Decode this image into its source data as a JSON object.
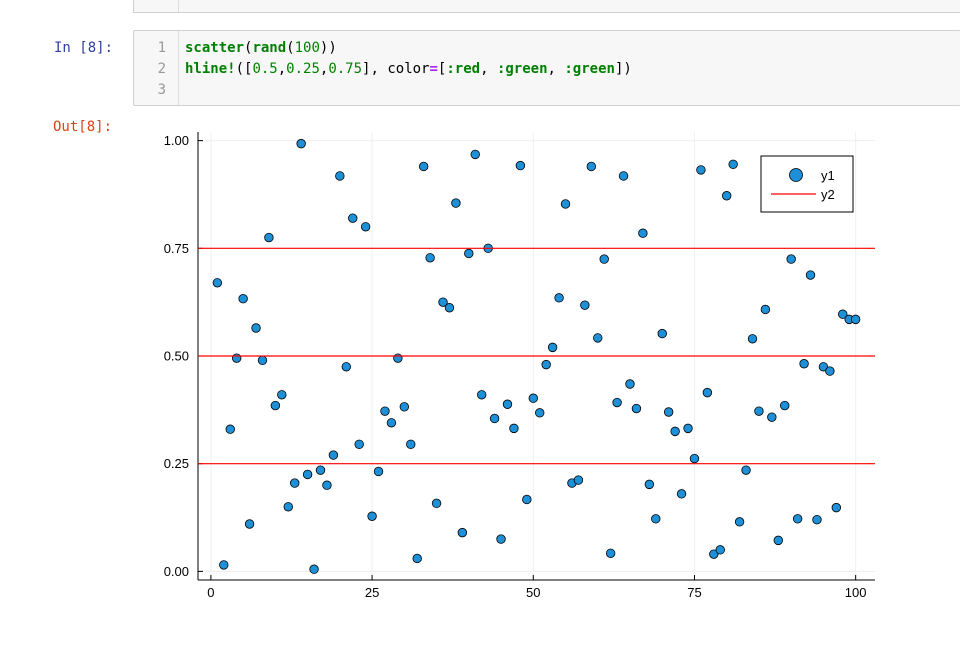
{
  "notebook": {
    "in_prompt": "In [8]:",
    "out_prompt": "Out[8]:",
    "line_numbers": [
      "1",
      "2",
      "3"
    ],
    "code": {
      "line1": {
        "fn": "scatter",
        "p1": "(",
        "inner": "rand",
        "p2": "(",
        "num": "100",
        "p3": "))"
      },
      "line2": {
        "fn": "hline!",
        "p1": "([",
        "n1": "0.5",
        "c1": ",",
        "n2": "0.25",
        "c2": ",",
        "n3": "0.75",
        "p2": "], color",
        "eq": "=",
        "p3": "[",
        "s1": ":red",
        "c3": ", ",
        "s2": ":green",
        "c4": ", ",
        "s3": ":green",
        "p4": "])"
      }
    }
  },
  "chart_data": {
    "type": "scatter",
    "xlim": [
      -2,
      103
    ],
    "ylim": [
      -0.02,
      1.02
    ],
    "x_ticks": [
      0,
      25,
      50,
      75,
      100
    ],
    "y_ticks": [
      0.0,
      0.25,
      0.5,
      0.75,
      1.0
    ],
    "x_tick_labels": [
      "0",
      "25",
      "50",
      "75",
      "100"
    ],
    "y_tick_labels": [
      "0.00",
      "0.25",
      "0.50",
      "0.75",
      "1.00"
    ],
    "grid": true,
    "legend_position": "top-right",
    "series": [
      {
        "name": "y1",
        "type": "scatter",
        "color": "#1e90d8",
        "x": [
          1,
          2,
          3,
          4,
          5,
          6,
          7,
          8,
          9,
          10,
          11,
          12,
          13,
          14,
          15,
          16,
          17,
          18,
          19,
          20,
          21,
          22,
          23,
          24,
          25,
          26,
          27,
          28,
          29,
          30,
          31,
          32,
          33,
          34,
          35,
          36,
          37,
          38,
          39,
          40,
          41,
          42,
          43,
          44,
          45,
          46,
          47,
          48,
          49,
          50,
          51,
          52,
          53,
          54,
          55,
          56,
          57,
          58,
          59,
          60,
          61,
          62,
          63,
          64,
          65,
          66,
          67,
          68,
          69,
          70,
          71,
          72,
          73,
          74,
          75,
          76,
          77,
          78,
          79,
          80,
          81,
          82,
          83,
          84,
          85,
          86,
          87,
          88,
          89,
          90,
          91,
          92,
          93,
          94,
          95,
          96,
          97,
          98,
          99,
          100
        ],
        "y": [
          0.67,
          0.015,
          0.33,
          0.495,
          0.633,
          0.11,
          0.565,
          0.49,
          0.775,
          0.385,
          0.41,
          0.15,
          0.205,
          0.993,
          0.225,
          0.005,
          0.235,
          0.2,
          0.27,
          0.918,
          0.475,
          0.82,
          0.295,
          0.8,
          0.128,
          0.232,
          0.372,
          0.345,
          0.495,
          0.382,
          0.295,
          0.03,
          0.94,
          0.728,
          0.158,
          0.625,
          0.612,
          0.855,
          0.09,
          0.738,
          0.968,
          0.41,
          0.75,
          0.355,
          0.075,
          0.388,
          0.332,
          0.942,
          0.167,
          0.402,
          0.368,
          0.48,
          0.52,
          0.635,
          0.853,
          0.205,
          0.212,
          0.618,
          0.94,
          0.542,
          0.725,
          0.042,
          0.392,
          0.918,
          0.435,
          0.378,
          0.785,
          0.202,
          0.122,
          0.552,
          0.37,
          0.325,
          0.18,
          0.332,
          0.262,
          0.932,
          0.415,
          0.04,
          0.05,
          0.872,
          0.945,
          0.115,
          0.235,
          0.54,
          0.372,
          0.608,
          0.358,
          0.072,
          0.385,
          0.725,
          0.122,
          0.482,
          0.688,
          0.12,
          0.475,
          0.465,
          0.148,
          0.597,
          0.585,
          0.585
        ]
      },
      {
        "name": "y2",
        "type": "hline",
        "y": [
          0.5,
          0.25,
          0.75
        ],
        "colors": [
          "#ff0000",
          "#ff0000",
          "#ff0000"
        ]
      }
    ]
  }
}
